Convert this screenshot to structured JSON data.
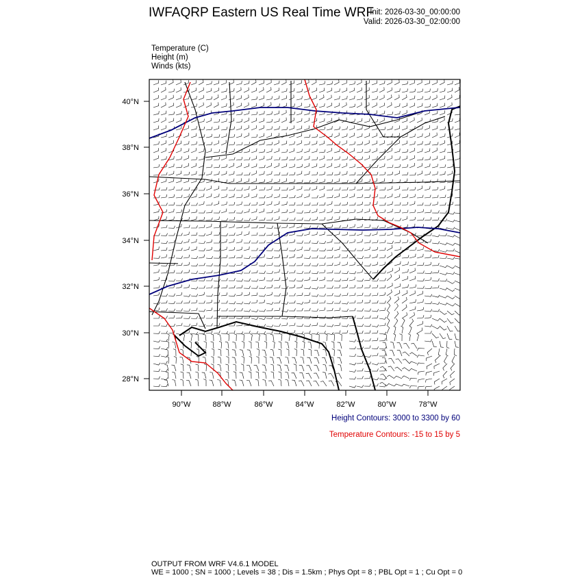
{
  "header": {
    "title": "IWFAQRP Eastern US Real Time WRF",
    "init": "Init: 2026-03-30_00:00:00",
    "valid": "Valid: 2026-03-30_02:00:00"
  },
  "fields": [
    "Temperature   (C)",
    "Height   (m)",
    "Winds   (kts)"
  ],
  "map": {
    "lat_labels": [
      "40°N",
      "38°N",
      "36°N",
      "34°N",
      "32°N",
      "30°N",
      "28°N"
    ],
    "lon_labels": [
      "90°W",
      "88°W",
      "86°W",
      "84°W",
      "82°W",
      "80°W",
      "78°W"
    ],
    "height_color": "#00007a",
    "temperature_color": "#e00000"
  },
  "contours": {
    "height": "Height Contours: 3000 to 3300 by 60",
    "temperature": "Temperature Contours: -15 to 15 by 5"
  },
  "footer": {
    "line1": "OUTPUT FROM WRF V4.6.1 MODEL",
    "line2": "WE = 1000 ; SN = 1000 ; Levels = 38 ; Dis = 1.5km ; Phys Opt = 8 ; PBL Opt = 1 ; Cu Opt = 0"
  }
}
